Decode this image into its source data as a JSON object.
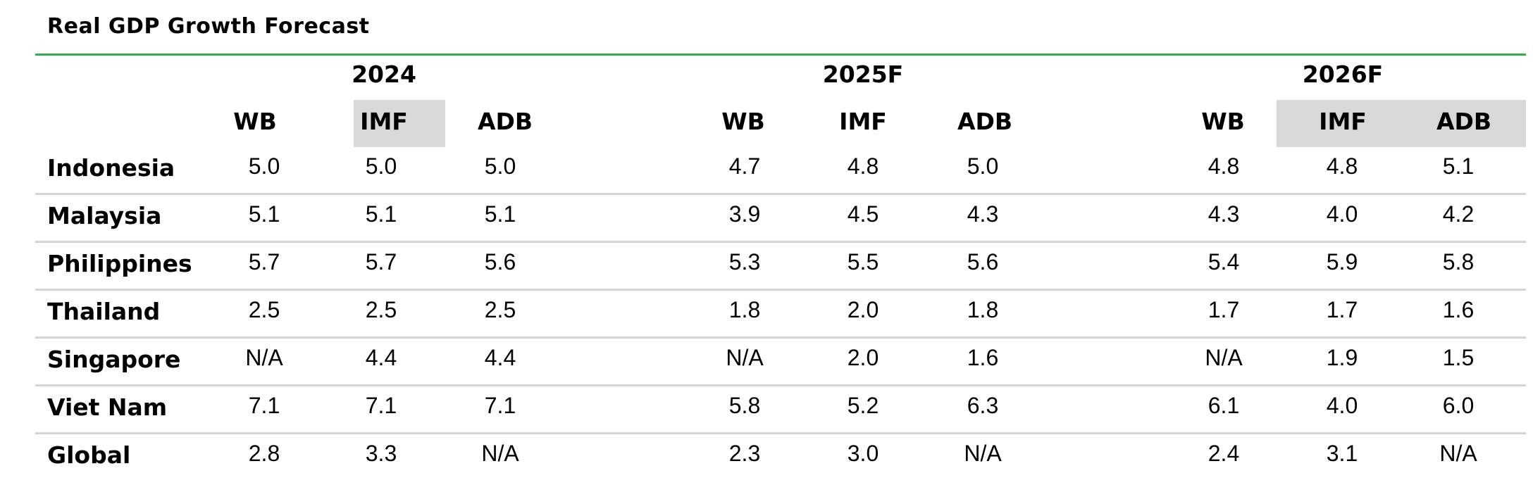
{
  "title": "Real GDP Growth Forecast",
  "years": [
    "2024",
    "2025F",
    "2026F"
  ],
  "sources": [
    "WB",
    "IMF",
    "ADB"
  ],
  "highlight_color": "#d9d9d9",
  "rule_color": "#2eb34a",
  "rows": [
    {
      "country": "Indonesia",
      "values": [
        "5.0",
        "5.0",
        "5.0",
        "4.7",
        "4.8",
        "5.0",
        "4.8",
        "4.8",
        "5.1"
      ]
    },
    {
      "country": "Malaysia",
      "values": [
        "5.1",
        "5.1",
        "5.1",
        "3.9",
        "4.5",
        "4.3",
        "4.3",
        "4.0",
        "4.2"
      ]
    },
    {
      "country": "Philippines",
      "values": [
        "5.7",
        "5.7",
        "5.6",
        "5.3",
        "5.5",
        "5.6",
        "5.4",
        "5.9",
        "5.8"
      ]
    },
    {
      "country": "Thailand",
      "values": [
        "2.5",
        "2.5",
        "2.5",
        "1.8",
        "2.0",
        "1.8",
        "1.7",
        "1.7",
        "1.6"
      ]
    },
    {
      "country": "Singapore",
      "values": [
        "N/A",
        "4.4",
        "4.4",
        "N/A",
        "2.0",
        "1.6",
        "N/A",
        "1.9",
        "1.5"
      ]
    },
    {
      "country": "Viet Nam",
      "values": [
        "7.1",
        "7.1",
        "7.1",
        "5.8",
        "5.2",
        "6.3",
        "6.1",
        "4.0",
        "6.0"
      ]
    },
    {
      "country": "Global",
      "values": [
        "2.8",
        "3.3",
        "N/A",
        "2.3",
        "3.0",
        "N/A",
        "2.4",
        "3.1",
        "N/A"
      ]
    }
  ]
}
